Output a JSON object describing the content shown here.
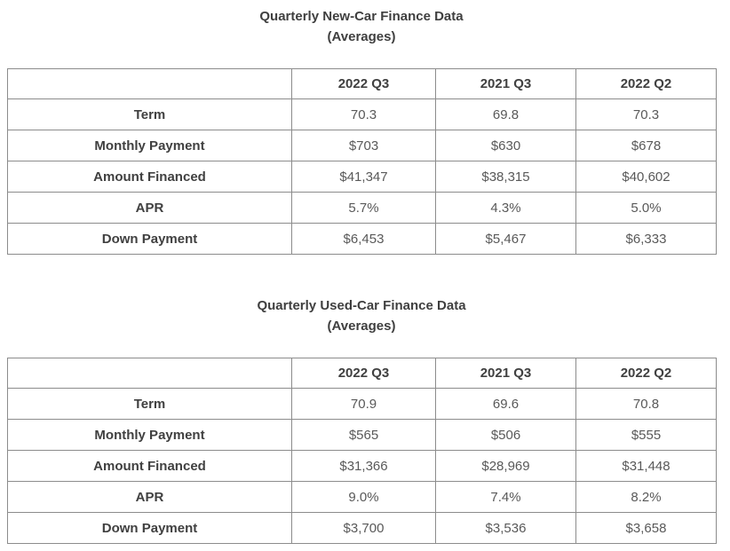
{
  "colors": {
    "background": "#ffffff",
    "table_border": "#8c8c8c",
    "label_text": "#404040",
    "value_text": "#595959",
    "title_text": "#3f3f3f"
  },
  "tables": [
    {
      "title": "Quarterly New-Car Finance Data",
      "subtitle": "(Averages)",
      "corner_label": "",
      "columns": [
        "2022 Q3",
        "2021 Q3",
        "2022 Q2"
      ],
      "rows": [
        {
          "label": "Term",
          "values": [
            "70.3",
            "69.8",
            "70.3"
          ]
        },
        {
          "label": "Monthly Payment",
          "values": [
            "$703",
            "$630",
            "$678"
          ]
        },
        {
          "label": "Amount Financed",
          "values": [
            "$41,347",
            "$38,315",
            "$40,602"
          ]
        },
        {
          "label": "APR",
          "values": [
            "5.7%",
            "4.3%",
            "5.0%"
          ]
        },
        {
          "label": "Down Payment",
          "values": [
            "$6,453",
            "$5,467",
            "$6,333"
          ]
        }
      ]
    },
    {
      "title": "Quarterly Used-Car Finance Data",
      "subtitle": "(Averages)",
      "corner_label": "",
      "columns": [
        "2022 Q3",
        "2021 Q3",
        "2022 Q2"
      ],
      "rows": [
        {
          "label": "Term",
          "values": [
            "70.9",
            "69.6",
            "70.8"
          ]
        },
        {
          "label": "Monthly Payment",
          "values": [
            "$565",
            "$506",
            "$555"
          ]
        },
        {
          "label": "Amount Financed",
          "values": [
            "$31,366",
            "$28,969",
            "$31,448"
          ]
        },
        {
          "label": "APR",
          "values": [
            "9.0%",
            "7.4%",
            "8.2%"
          ]
        },
        {
          "label": "Down Payment",
          "values": [
            "$3,700",
            "$3,536",
            "$3,658"
          ]
        }
      ]
    }
  ],
  "chart_data": [
    {
      "type": "table",
      "title": "Quarterly New-Car Finance Data",
      "subtitle": "(Averages)",
      "categories": [
        "2022 Q3",
        "2021 Q3",
        "2022 Q2"
      ],
      "series": [
        {
          "name": "Term",
          "values": [
            70.3,
            69.8,
            70.3
          ]
        },
        {
          "name": "Monthly Payment",
          "values": [
            703,
            630,
            678
          ]
        },
        {
          "name": "Amount Financed",
          "values": [
            41347,
            38315,
            40602
          ]
        },
        {
          "name": "APR",
          "values": [
            5.7,
            4.3,
            5.0
          ]
        },
        {
          "name": "Down Payment",
          "values": [
            6453,
            5467,
            6333
          ]
        }
      ]
    },
    {
      "type": "table",
      "title": "Quarterly Used-Car Finance Data",
      "subtitle": "(Averages)",
      "categories": [
        "2022 Q3",
        "2021 Q3",
        "2022 Q2"
      ],
      "series": [
        {
          "name": "Term",
          "values": [
            70.9,
            69.6,
            70.8
          ]
        },
        {
          "name": "Monthly Payment",
          "values": [
            565,
            506,
            555
          ]
        },
        {
          "name": "Amount Financed",
          "values": [
            31366,
            28969,
            31448
          ]
        },
        {
          "name": "APR",
          "values": [
            9.0,
            7.4,
            8.2
          ]
        },
        {
          "name": "Down Payment",
          "values": [
            3700,
            3536,
            3658
          ]
        }
      ]
    }
  ]
}
